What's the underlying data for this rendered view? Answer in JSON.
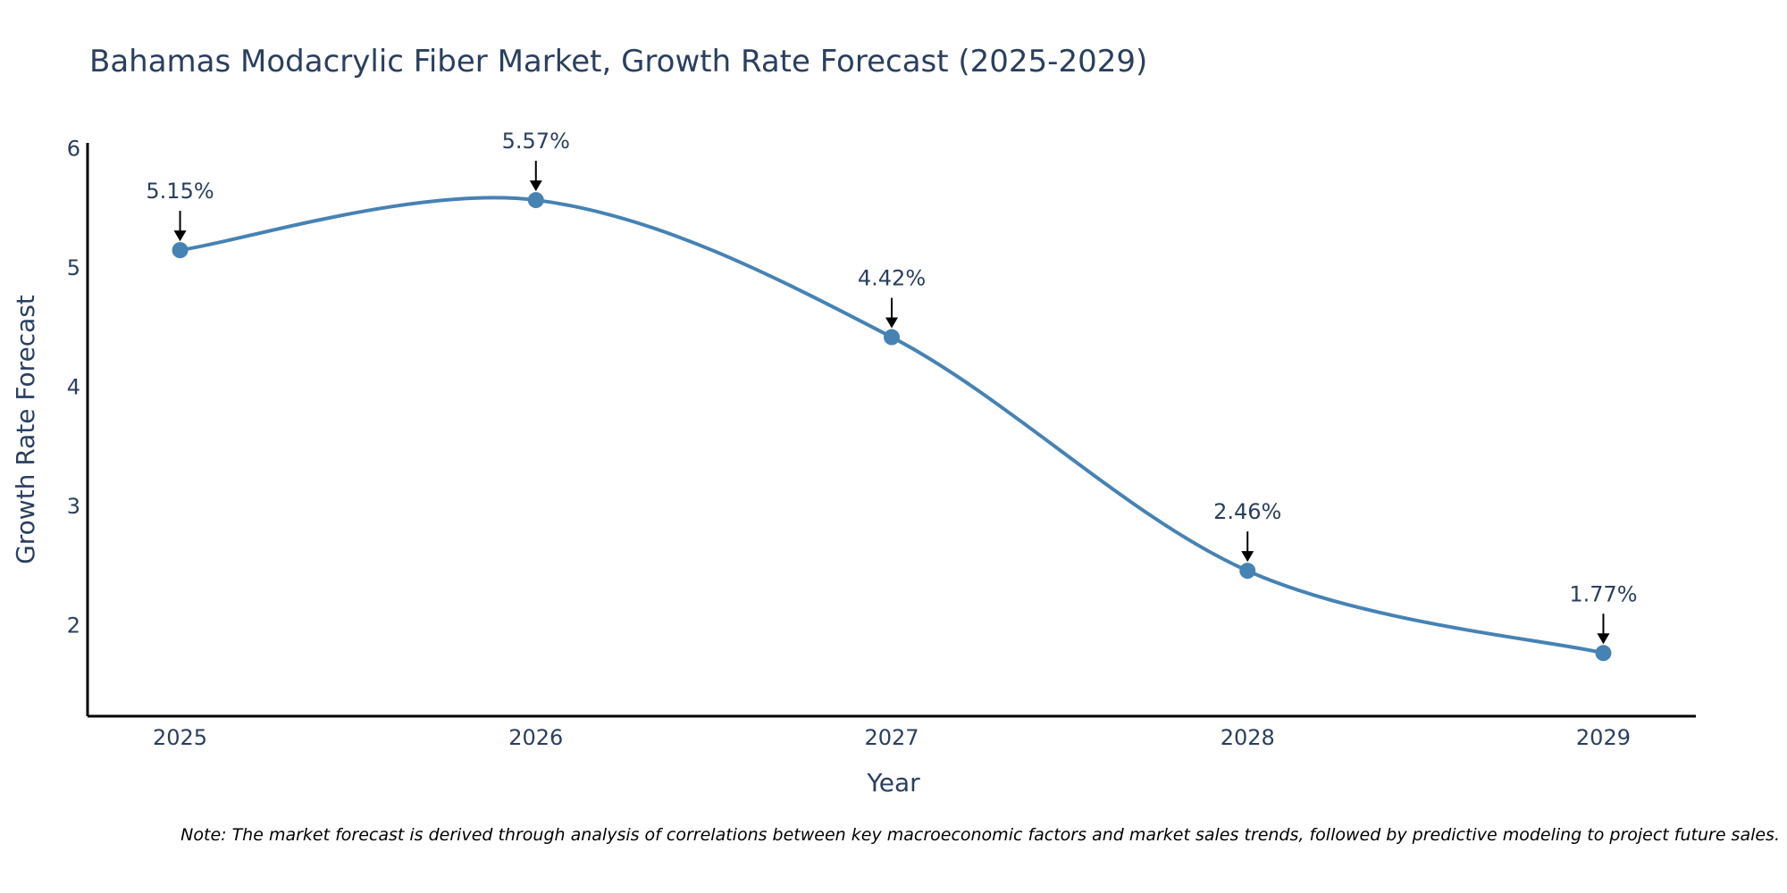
{
  "chart_data": {
    "type": "line",
    "title": "Bahamas Modacrylic Fiber Market, Growth Rate Forecast (2025-2029)",
    "xlabel": "Year",
    "ylabel": "Growth Rate Forecast",
    "categories": [
      "2025",
      "2026",
      "2027",
      "2028",
      "2029"
    ],
    "values": [
      5.15,
      5.57,
      4.42,
      2.46,
      1.77
    ],
    "data_labels": [
      "5.15%",
      "5.57%",
      "4.42%",
      "2.46%",
      "1.77%"
    ],
    "y_ticks": [
      2,
      3,
      4,
      5,
      6
    ],
    "ylim": [
      1.24,
      6.05
    ],
    "x_range": [
      -0.26,
      4.26
    ],
    "grid": false,
    "line_shape": "spline",
    "colors": {
      "line": "#4682b4",
      "marker": "#4682b4",
      "text": "#2a3f5f",
      "axis": "#000000",
      "arrow": "#000000"
    }
  },
  "note": "Note: The market forecast is derived through analysis of correlations between key macroeconomic factors and market sales trends, followed by predictive modeling to project future sales."
}
